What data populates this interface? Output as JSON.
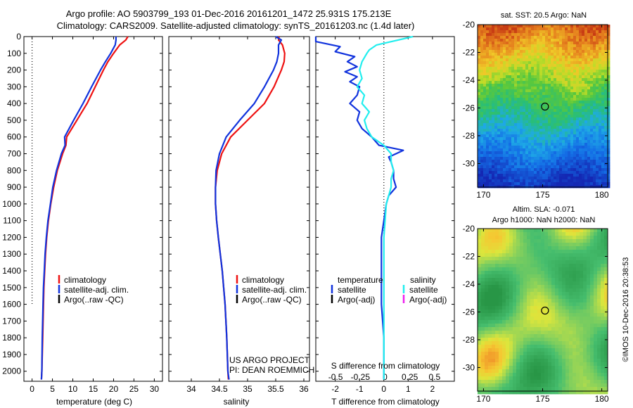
{
  "header": {
    "line1": "Argo profile: AO 5903799_193 01-Dec-2016 20161201_1472 25.931S 175.213E",
    "line2": "Climatology: CARS2009. Satellite-adjusted climatology: synTS_20161203.nc (1.4d later)"
  },
  "colors": {
    "red": "#ee1111",
    "blue": "#1133dd",
    "cyan": "#22eeee",
    "magenta": "#ee22ee",
    "black": "#000000"
  },
  "depth_axis": {
    "ticks": [
      "0",
      "100",
      "200",
      "300",
      "400",
      "500",
      "600",
      "700",
      "800",
      "900",
      "1000",
      "1100",
      "1200",
      "1300",
      "1400",
      "1500",
      "1600",
      "1700",
      "1800",
      "1900",
      "2000"
    ],
    "min": 0,
    "max": 2060,
    "reversed": true
  },
  "chart_data": [
    {
      "type": "line",
      "name": "temperature-panel",
      "xlabel": "temperature (deg C)",
      "xlim": [
        -2,
        32
      ],
      "xticks": [
        "0",
        "5",
        "10",
        "15",
        "20",
        "25",
        "30"
      ],
      "ylim": [
        2060,
        0
      ],
      "zero_line": true,
      "zero_line_to": 1600,
      "series": [
        {
          "name": "climatology",
          "color": "red",
          "depth": [
            0,
            20,
            50,
            100,
            150,
            200,
            300,
            400,
            500,
            600,
            650,
            700,
            800,
            900,
            1000,
            1100,
            1200,
            1300,
            1400,
            1500,
            1600,
            1800,
            2000,
            2050
          ],
          "values": [
            23.5,
            23.0,
            21.5,
            20.0,
            18.6,
            17.5,
            15.5,
            13.5,
            11.0,
            8.5,
            8.3,
            7.5,
            6.2,
            5.3,
            4.6,
            4.0,
            3.6,
            3.3,
            3.1,
            2.9,
            2.8,
            2.6,
            2.4,
            2.3
          ]
        },
        {
          "name": "satellite-adj. clim.",
          "color": "blue",
          "depth": [
            0,
            20,
            50,
            100,
            150,
            200,
            300,
            400,
            500,
            600,
            650,
            700,
            800,
            900,
            1000,
            1100,
            1200,
            1300,
            1400,
            1500,
            1600,
            1800,
            2000,
            2050
          ],
          "values": [
            20.6,
            20.6,
            20.4,
            19.3,
            18.0,
            16.8,
            14.6,
            12.5,
            10.2,
            8.0,
            8.1,
            7.2,
            6.0,
            5.1,
            4.5,
            3.9,
            3.5,
            3.2,
            3.0,
            2.8,
            2.7,
            2.5,
            2.4,
            2.3
          ]
        }
      ],
      "legend": [
        "climatology",
        "satellite-adj. clim.",
        "Argo(..raw -QC)"
      ]
    },
    {
      "type": "line",
      "name": "salinity-panel",
      "xlabel": "salinity",
      "xlim": [
        33.6,
        36.1
      ],
      "xticks": [
        "34",
        "34.5",
        "35",
        "35.5",
        "36"
      ],
      "ylim": [
        2060,
        0
      ],
      "series": [
        {
          "name": "climatology",
          "color": "red",
          "depth": [
            0,
            20,
            50,
            100,
            150,
            200,
            300,
            400,
            500,
            600,
            700,
            800,
            900,
            1000,
            1100,
            1200,
            1400,
            1600,
            1800,
            2000,
            2050
          ],
          "values": [
            35.56,
            35.55,
            35.62,
            35.66,
            35.65,
            35.6,
            35.47,
            35.3,
            35.0,
            34.7,
            34.54,
            34.46,
            34.43,
            34.43,
            34.45,
            34.48,
            34.55,
            34.6,
            34.63,
            34.65,
            34.66
          ]
        },
        {
          "name": "satellite-adj. clim.",
          "color": "blue",
          "depth": [
            0,
            20,
            50,
            100,
            150,
            200,
            300,
            400,
            500,
            600,
            700,
            800,
            900,
            1000,
            1100,
            1200,
            1400,
            1600,
            1800,
            2000,
            2050
          ],
          "values": [
            35.5,
            35.6,
            35.55,
            35.55,
            35.52,
            35.46,
            35.3,
            35.12,
            34.86,
            34.62,
            34.5,
            34.44,
            34.43,
            34.43,
            34.45,
            34.48,
            34.55,
            34.6,
            34.63,
            34.65,
            34.67
          ]
        }
      ],
      "legend": [
        "climatology",
        "satellite-adj. clim.",
        "Argo(..raw -QC)"
      ]
    },
    {
      "type": "line",
      "name": "difference-panel",
      "xlabel": "T difference from climatology",
      "xlabel_top": "S difference from climatology",
      "xlim": [
        -2.8,
        2.9
      ],
      "xticks_bottom": [
        "-2",
        "-1",
        "0",
        "1",
        "2"
      ],
      "xticks_top": [
        "-0.5",
        "-0.25",
        "0",
        "0.25",
        "0.5"
      ],
      "ylim": [
        2060,
        0
      ],
      "zero_line": true,
      "series": [
        {
          "name": "temperature satellite",
          "color": "blue",
          "depth": [
            0,
            30,
            60,
            90,
            120,
            150,
            180,
            210,
            240,
            270,
            300,
            350,
            400,
            450,
            500,
            550,
            600,
            650,
            680,
            700,
            720,
            750,
            800,
            850,
            900,
            950,
            1000,
            1100,
            1200,
            1300,
            1400,
            1500,
            1600,
            1800,
            2000,
            2050
          ],
          "values": [
            -2.8,
            -2.8,
            -1.8,
            -2.0,
            -1.2,
            -1.5,
            -1.1,
            -1.6,
            -1.1,
            -1.4,
            -1.0,
            -1.1,
            -1.4,
            -1.0,
            -1.1,
            -0.9,
            -0.5,
            -0.2,
            0.8,
            0.5,
            0.2,
            0.3,
            0.4,
            0.4,
            0.5,
            0.2,
            0.1,
            0.0,
            -0.1,
            -0.1,
            -0.1,
            -0.1,
            -0.1,
            0.0,
            0.0,
            0.0
          ]
        },
        {
          "name": "salinity satellite",
          "color": "cyan",
          "depth": [
            0,
            20,
            50,
            80,
            100,
            150,
            200,
            250,
            300,
            350,
            400,
            450,
            500,
            550,
            600,
            650,
            700,
            750,
            800,
            850,
            900,
            950,
            1000,
            1100,
            1200,
            1300,
            1400,
            1500,
            1600,
            1800,
            2000,
            2050
          ],
          "values": [
            1.2,
            0.6,
            -0.3,
            -0.6,
            -0.7,
            -0.9,
            -1.0,
            -0.9,
            -1.1,
            -0.8,
            -0.9,
            -0.6,
            -0.8,
            -0.7,
            -0.5,
            0.0,
            0.3,
            0.3,
            0.4,
            0.3,
            0.3,
            0.2,
            0.1,
            0.05,
            0.0,
            0.0,
            0.0,
            0.0,
            0.0,
            0.0,
            0.0,
            0.0
          ]
        }
      ],
      "legend_temperature": {
        "title": "temperature",
        "items": [
          "satellite",
          "Argo(-adj)"
        ]
      },
      "legend_salinity": {
        "title": "salinity",
        "items": [
          "satellite",
          "Argo(-adj)"
        ]
      },
      "annotation": [
        "US ARGO PROJECT",
        "PI: DEAN ROEMMICH"
      ]
    },
    {
      "type": "heatmap",
      "name": "sst-map",
      "title": "sat. SST: 20.5  Argo: NaN",
      "xlim": [
        169.5,
        180.5
      ],
      "ylim": [
        -20,
        -31.7
      ],
      "xticks": [
        "170",
        "175",
        "180"
      ],
      "yticks": [
        "-20",
        "-22",
        "-24",
        "-26",
        "-28",
        "-30"
      ],
      "marker": [
        175.2,
        -25.9
      ],
      "colormap": "jet-like, warm north, cool south"
    },
    {
      "type": "heatmap",
      "name": "sla-map",
      "title_line1": "Altim. SLA: -0.071",
      "title_line2": "Argo h1000: NaN h2000: NaN",
      "xlim": [
        169.5,
        180.5
      ],
      "ylim": [
        -20,
        -31.7
      ],
      "xticks": [
        "170",
        "175",
        "180"
      ],
      "yticks": [
        "-20",
        "-22",
        "-24",
        "-26",
        "-28",
        "-30"
      ],
      "marker": [
        175.2,
        -25.9
      ],
      "colormap": "green-yellow-orange blobs"
    }
  ],
  "footer": {
    "credit": "©IMOS 10-Dec-2016 20:38:53"
  }
}
